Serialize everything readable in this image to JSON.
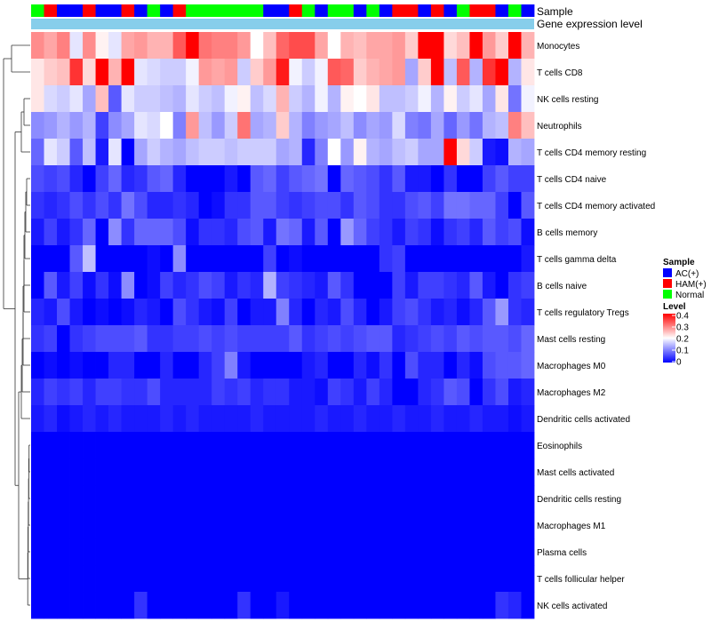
{
  "chart_data": {
    "type": "heatmap",
    "annotation_tracks": [
      {
        "name": "Sample"
      },
      {
        "name": "Gene expression level"
      }
    ],
    "legend": {
      "sample_title": "Sample",
      "sample_entries": [
        {
          "name": "AC(+)",
          "color": "#0000ff"
        },
        {
          "name": "HAM(+)",
          "color": "#ff0000"
        },
        {
          "name": "Normal",
          "color": "#00ff00"
        }
      ],
      "level_title": "Level",
      "level_ticks": [
        "0.4",
        "0.3",
        "0.2",
        "0.1",
        "0"
      ],
      "color_scale": {
        "low": "#0000ff",
        "mid": "#ffffff",
        "high": "#ff0000",
        "min": 0,
        "mid_value": 0.2,
        "max": 0.4
      }
    },
    "expression_level_color": "#87ceeb",
    "sample_groups": [
      "Normal",
      "HAM(+)",
      "AC(+)",
      "AC(+)",
      "HAM(+)",
      "AC(+)",
      "AC(+)",
      "HAM(+)",
      "AC(+)",
      "Normal",
      "AC(+)",
      "HAM(+)",
      "Normal",
      "Normal",
      "Normal",
      "Normal",
      "Normal",
      "Normal",
      "AC(+)",
      "AC(+)",
      "HAM(+)",
      "Normal",
      "AC(+)",
      "Normal",
      "Normal",
      "AC(+)",
      "Normal",
      "AC(+)",
      "HAM(+)",
      "HAM(+)",
      "AC(+)",
      "HAM(+)",
      "AC(+)",
      "Normal",
      "HAM(+)",
      "HAM(+)",
      "AC(+)",
      "Normal",
      "AC(+)"
    ],
    "rows": [
      "Monocytes",
      "T cells CD8",
      "NK cells resting",
      "Neutrophils",
      "T cells CD4 memory resting",
      "T cells CD4 naive",
      "T cells CD4 memory activated",
      "B cells memory",
      "T cells gamma delta",
      "B cells naive",
      "T cells regulatory  Tregs",
      "Mast cells resting",
      "Macrophages M0",
      "Macrophages M2",
      "Dendritic cells activated",
      "Eosinophils",
      "Mast cells activated",
      "Dendritic cells resting",
      "Macrophages M1",
      "Plasma cells",
      "T cells follicular helper",
      "NK cells activated"
    ],
    "values": [
      [
        0.29,
        0.27,
        0.3,
        0.18,
        0.29,
        0.21,
        0.18,
        0.27,
        0.28,
        0.26,
        0.26,
        0.33,
        0.4,
        0.31,
        0.3,
        0.3,
        0.28,
        0.2,
        0.25,
        0.32,
        0.34,
        0.34,
        0.27,
        0.2,
        0.26,
        0.25,
        0.27,
        0.27,
        0.28,
        0.24,
        0.4,
        0.4,
        0.23,
        0.25,
        0.4,
        0.28,
        0.24,
        0.4,
        0.26
      ],
      [
        0.22,
        0.24,
        0.25,
        0.36,
        0.23,
        0.4,
        0.26,
        0.4,
        0.18,
        0.17,
        0.16,
        0.16,
        0.19,
        0.28,
        0.27,
        0.28,
        0.16,
        0.24,
        0.28,
        0.38,
        0.19,
        0.16,
        0.19,
        0.33,
        0.32,
        0.24,
        0.26,
        0.27,
        0.28,
        0.13,
        0.24,
        0.4,
        0.15,
        0.33,
        0.14,
        0.36,
        0.4,
        0.14,
        0.22
      ],
      [
        0.22,
        0.17,
        0.16,
        0.18,
        0.13,
        0.25,
        0.07,
        0.18,
        0.16,
        0.16,
        0.15,
        0.14,
        0.18,
        0.16,
        0.15,
        0.19,
        0.21,
        0.15,
        0.17,
        0.26,
        0.16,
        0.14,
        0.19,
        0.14,
        0.21,
        0.2,
        0.22,
        0.15,
        0.15,
        0.16,
        0.19,
        0.14,
        0.21,
        0.16,
        0.18,
        0.13,
        0.22,
        0.09,
        0.19
      ],
      [
        0.11,
        0.12,
        0.14,
        0.12,
        0.14,
        0.05,
        0.11,
        0.13,
        0.18,
        0.17,
        0.2,
        0.1,
        0.28,
        0.15,
        0.12,
        0.16,
        0.31,
        0.13,
        0.14,
        0.24,
        0.14,
        0.1,
        0.12,
        0.13,
        0.15,
        0.11,
        0.13,
        0.12,
        0.17,
        0.1,
        0.09,
        0.13,
        0.08,
        0.12,
        0.09,
        0.14,
        0.15,
        0.3,
        0.25
      ],
      [
        0.08,
        0.18,
        0.16,
        0.07,
        0.15,
        0.02,
        0.18,
        0.0,
        0.13,
        0.16,
        0.14,
        0.13,
        0.15,
        0.16,
        0.16,
        0.15,
        0.16,
        0.16,
        0.16,
        0.13,
        0.14,
        0.03,
        0.1,
        0.2,
        0.12,
        0.21,
        0.14,
        0.13,
        0.15,
        0.16,
        0.13,
        0.13,
        0.4,
        0.23,
        0.16,
        0.02,
        0.01,
        0.14,
        0.13
      ],
      [
        0.06,
        0.05,
        0.06,
        0.03,
        0.0,
        0.05,
        0.08,
        0.03,
        0.04,
        0.07,
        0.08,
        0.03,
        0.0,
        0.0,
        0.0,
        0.02,
        0.0,
        0.07,
        0.08,
        0.05,
        0.07,
        0.08,
        0.09,
        0.0,
        0.08,
        0.07,
        0.06,
        0.04,
        0.07,
        0.02,
        0.02,
        0.0,
        0.04,
        0.0,
        0.0,
        0.05,
        0.07,
        0.05,
        0.05
      ],
      [
        0.04,
        0.03,
        0.04,
        0.06,
        0.04,
        0.06,
        0.04,
        0.09,
        0.06,
        0.03,
        0.03,
        0.04,
        0.03,
        0.0,
        0.01,
        0.04,
        0.04,
        0.07,
        0.07,
        0.05,
        0.04,
        0.05,
        0.06,
        0.06,
        0.04,
        0.07,
        0.06,
        0.04,
        0.04,
        0.06,
        0.07,
        0.05,
        0.09,
        0.09,
        0.08,
        0.08,
        0.05,
        0.0,
        0.07
      ],
      [
        0.02,
        0.05,
        0.02,
        0.04,
        0.08,
        0.0,
        0.11,
        0.04,
        0.08,
        0.08,
        0.08,
        0.06,
        0.01,
        0.04,
        0.04,
        0.03,
        0.06,
        0.07,
        0.02,
        0.09,
        0.08,
        0.02,
        0.07,
        0.0,
        0.12,
        0.08,
        0.05,
        0.04,
        0.02,
        0.05,
        0.04,
        0.01,
        0.04,
        0.05,
        0.03,
        0.07,
        0.05,
        0.06,
        0.01
      ],
      [
        0.0,
        0.0,
        0.0,
        0.07,
        0.15,
        0.0,
        0.0,
        0.0,
        0.0,
        0.01,
        0.0,
        0.11,
        0.0,
        0.0,
        0.0,
        0.0,
        0.0,
        0.0,
        0.05,
        0.0,
        0.01,
        0.0,
        0.0,
        0.0,
        0.0,
        0.0,
        0.0,
        0.04,
        0.05,
        0.0,
        0.0,
        0.0,
        0.0,
        0.0,
        0.0,
        0.0,
        0.0,
        0.0,
        0.02
      ],
      [
        0.0,
        0.07,
        0.02,
        0.05,
        0.01,
        0.04,
        0.01,
        0.11,
        0.0,
        0.01,
        0.05,
        0.03,
        0.04,
        0.06,
        0.05,
        0.02,
        0.04,
        0.03,
        0.14,
        0.05,
        0.04,
        0.03,
        0.02,
        0.07,
        0.04,
        0.0,
        0.0,
        0.0,
        0.05,
        0.02,
        0.05,
        0.05,
        0.04,
        0.03,
        0.07,
        0.02,
        0.0,
        0.04,
        0.05
      ],
      [
        0.03,
        0.02,
        0.06,
        0.02,
        0.0,
        0.01,
        0.0,
        0.01,
        0.03,
        0.02,
        0.0,
        0.06,
        0.04,
        0.02,
        0.01,
        0.05,
        0.0,
        0.02,
        0.02,
        0.1,
        0.03,
        0.0,
        0.03,
        0.02,
        0.06,
        0.03,
        0.0,
        0.02,
        0.05,
        0.06,
        0.04,
        0.02,
        0.03,
        0.01,
        0.03,
        0.07,
        0.12,
        0.04,
        0.03
      ],
      [
        0.04,
        0.05,
        0.0,
        0.04,
        0.05,
        0.06,
        0.06,
        0.06,
        0.07,
        0.04,
        0.04,
        0.05,
        0.05,
        0.06,
        0.05,
        0.06,
        0.05,
        0.05,
        0.05,
        0.05,
        0.07,
        0.04,
        0.05,
        0.06,
        0.05,
        0.06,
        0.07,
        0.07,
        0.03,
        0.04,
        0.05,
        0.06,
        0.05,
        0.07,
        0.06,
        0.07,
        0.07,
        0.06,
        0.08
      ],
      [
        0.0,
        0.01,
        0.0,
        0.01,
        0.0,
        0.0,
        0.03,
        0.03,
        0.0,
        0.0,
        0.03,
        0.0,
        0.0,
        0.03,
        0.05,
        0.1,
        0.02,
        0.0,
        0.0,
        0.0,
        0.0,
        0.02,
        0.03,
        0.0,
        0.0,
        0.03,
        0.01,
        0.04,
        0.0,
        0.06,
        0.03,
        0.03,
        0.0,
        0.03,
        0.01,
        0.06,
        0.07,
        0.07,
        0.08
      ],
      [
        0.03,
        0.05,
        0.04,
        0.05,
        0.03,
        0.05,
        0.05,
        0.04,
        0.04,
        0.06,
        0.03,
        0.03,
        0.03,
        0.03,
        0.05,
        0.04,
        0.05,
        0.03,
        0.04,
        0.04,
        0.02,
        0.02,
        0.01,
        0.05,
        0.04,
        0.02,
        0.05,
        0.03,
        0.0,
        0.0,
        0.03,
        0.04,
        0.07,
        0.06,
        0.0,
        0.04,
        0.06,
        0.02,
        0.03
      ],
      [
        0.02,
        0.03,
        0.01,
        0.02,
        0.03,
        0.02,
        0.03,
        0.02,
        0.02,
        0.02,
        0.03,
        0.02,
        0.03,
        0.02,
        0.02,
        0.02,
        0.02,
        0.03,
        0.02,
        0.02,
        0.02,
        0.02,
        0.03,
        0.02,
        0.02,
        0.03,
        0.02,
        0.02,
        0.03,
        0.02,
        0.02,
        0.03,
        0.02,
        0.02,
        0.03,
        0.02,
        0.02,
        0.01,
        0.02
      ],
      [
        0,
        0,
        0,
        0,
        0,
        0,
        0,
        0,
        0,
        0,
        0,
        0,
        0,
        0,
        0,
        0,
        0,
        0,
        0,
        0,
        0,
        0,
        0,
        0,
        0,
        0,
        0,
        0,
        0,
        0,
        0,
        0,
        0,
        0,
        0,
        0,
        0,
        0,
        0
      ],
      [
        0,
        0,
        0,
        0,
        0,
        0,
        0,
        0,
        0,
        0,
        0,
        0,
        0,
        0,
        0,
        0,
        0,
        0,
        0,
        0,
        0,
        0,
        0,
        0,
        0,
        0,
        0,
        0,
        0,
        0,
        0,
        0,
        0,
        0,
        0,
        0,
        0,
        0,
        0
      ],
      [
        0,
        0,
        0,
        0,
        0,
        0,
        0,
        0,
        0,
        0,
        0,
        0,
        0,
        0,
        0,
        0,
        0,
        0,
        0,
        0,
        0,
        0,
        0,
        0,
        0,
        0,
        0,
        0,
        0,
        0,
        0,
        0,
        0,
        0,
        0,
        0,
        0,
        0,
        0
      ],
      [
        0,
        0,
        0,
        0,
        0,
        0,
        0,
        0,
        0,
        0,
        0,
        0,
        0,
        0,
        0,
        0,
        0,
        0,
        0,
        0,
        0,
        0,
        0,
        0,
        0,
        0,
        0,
        0,
        0,
        0,
        0,
        0,
        0,
        0,
        0,
        0,
        0,
        0,
        0
      ],
      [
        0,
        0,
        0,
        0,
        0,
        0,
        0,
        0,
        0,
        0,
        0,
        0,
        0,
        0,
        0,
        0,
        0,
        0,
        0,
        0,
        0,
        0,
        0,
        0,
        0,
        0,
        0,
        0,
        0,
        0,
        0,
        0,
        0,
        0,
        0,
        0,
        0,
        0,
        0
      ],
      [
        0,
        0,
        0,
        0,
        0,
        0,
        0,
        0,
        0,
        0,
        0,
        0,
        0,
        0,
        0,
        0,
        0,
        0,
        0,
        0,
        0,
        0,
        0,
        0,
        0,
        0,
        0,
        0,
        0,
        0,
        0,
        0,
        0,
        0,
        0,
        0,
        0,
        0,
        0
      ],
      [
        0,
        0,
        0,
        0,
        0,
        0,
        0,
        0,
        0.04,
        0,
        0,
        0,
        0,
        0,
        0,
        0,
        0.04,
        0,
        0,
        0.02,
        0,
        0,
        0,
        0,
        0,
        0,
        0,
        0,
        0,
        0,
        0,
        0,
        0,
        0,
        0,
        0,
        0.04,
        0.03,
        0
      ]
    ]
  }
}
